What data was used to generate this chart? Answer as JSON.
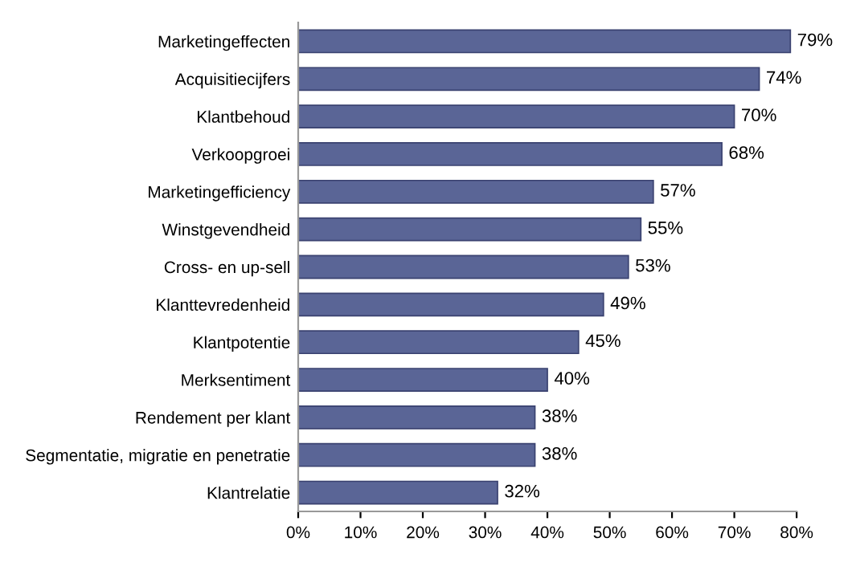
{
  "chart_data": {
    "type": "bar",
    "orientation": "horizontal",
    "categories": [
      "Marketingeffecten",
      "Acquisitiecijfers",
      "Klantbehoud",
      "Verkoopgroei",
      "Marketingefficiency",
      "Winstgevendheid",
      "Cross- en up-sell",
      "Klanttevredenheid",
      "Klantpotentie",
      "Merksentiment",
      "Rendement per klant",
      "Segmentatie, migratie en penetratie",
      "Klantrelatie"
    ],
    "values": [
      79,
      74,
      70,
      68,
      57,
      55,
      53,
      49,
      45,
      40,
      38,
      38,
      32
    ],
    "value_labels": [
      "79%",
      "74%",
      "70%",
      "68%",
      "57%",
      "55%",
      "53%",
      "49%",
      "45%",
      "40%",
      "38%",
      "38%",
      "32%"
    ],
    "color": "#5a6596",
    "xlim": [
      0,
      80
    ],
    "xticks": [
      {
        "value": 0,
        "label": "0%"
      },
      {
        "value": 10,
        "label": "10%"
      },
      {
        "value": 20,
        "label": "20%"
      },
      {
        "value": 30,
        "label": "30%"
      },
      {
        "value": 40,
        "label": "40%"
      },
      {
        "value": 50,
        "label": "50%"
      },
      {
        "value": 60,
        "label": "60%"
      },
      {
        "value": 70,
        "label": "70%"
      },
      {
        "value": 80,
        "label": "80%"
      }
    ],
    "grid": false
  }
}
